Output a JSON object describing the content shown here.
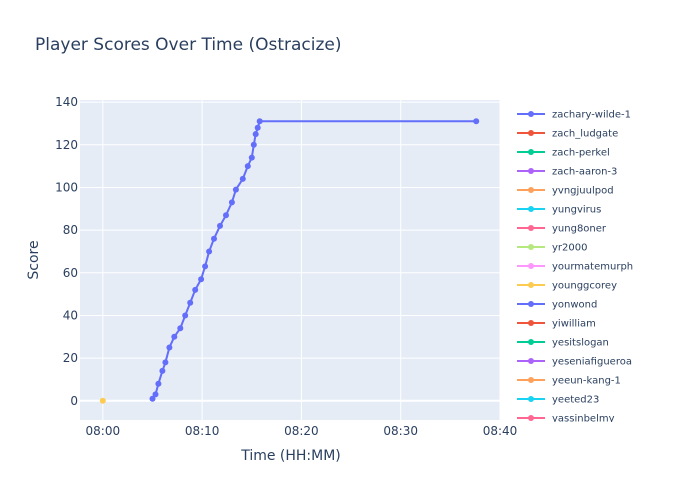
{
  "chart_data": {
    "type": "line",
    "title": "Player Scores Over Time (Ostracize)",
    "xlabel": "Time (HH:MM)",
    "ylabel": "Score",
    "x_ticks": [
      "08:00",
      "08:10",
      "08:20",
      "08:30",
      "08:40"
    ],
    "y_ticks": [
      0,
      20,
      40,
      60,
      80,
      100,
      120,
      140
    ],
    "xlim": [
      "07:57.7",
      "08:40"
    ],
    "ylim": [
      -9,
      141
    ],
    "grid": true,
    "legend_position": "right",
    "series": [
      {
        "name": "zachary-wilde-1",
        "color": "#636efa",
        "points": [
          {
            "x": "08:05.0",
            "y": 1
          },
          {
            "x": "08:05.3",
            "y": 3
          },
          {
            "x": "08:05.6",
            "y": 8
          },
          {
            "x": "08:06.0",
            "y": 14
          },
          {
            "x": "08:06.3",
            "y": 18
          },
          {
            "x": "08:06.7",
            "y": 25
          },
          {
            "x": "08:07.2",
            "y": 30
          },
          {
            "x": "08:07.8",
            "y": 34
          },
          {
            "x": "08:08.3",
            "y": 40
          },
          {
            "x": "08:08.8",
            "y": 46
          },
          {
            "x": "08:09.3",
            "y": 52
          },
          {
            "x": "08:09.9",
            "y": 57
          },
          {
            "x": "08:10.3",
            "y": 63
          },
          {
            "x": "08:10.7",
            "y": 70
          },
          {
            "x": "08:11.2",
            "y": 76
          },
          {
            "x": "08:11.8",
            "y": 82
          },
          {
            "x": "08:12.4",
            "y": 87
          },
          {
            "x": "08:13.0",
            "y": 93
          },
          {
            "x": "08:13.4",
            "y": 99
          },
          {
            "x": "08:14.1",
            "y": 104
          },
          {
            "x": "08:14.6",
            "y": 110
          },
          {
            "x": "08:15.0",
            "y": 114
          },
          {
            "x": "08:15.2",
            "y": 120
          },
          {
            "x": "08:15.4",
            "y": 125
          },
          {
            "x": "08:15.6",
            "y": 128
          },
          {
            "x": "08:15.8",
            "y": 131
          },
          {
            "x": "08:37.6",
            "y": 131
          }
        ]
      },
      {
        "name": "zach_ludgate",
        "color": "#ef553b",
        "points": []
      },
      {
        "name": "zach-perkel",
        "color": "#00cc96",
        "points": []
      },
      {
        "name": "zach-aaron-3",
        "color": "#ab63fa",
        "points": []
      },
      {
        "name": "yvngjuulpod",
        "color": "#ffa15a",
        "points": []
      },
      {
        "name": "yungvirus",
        "color": "#19d3f3",
        "points": []
      },
      {
        "name": "yung8oner",
        "color": "#ff6692",
        "points": []
      },
      {
        "name": "yr2000",
        "color": "#b6e880",
        "points": []
      },
      {
        "name": "yourmatemurph",
        "color": "#ff97ff",
        "points": []
      },
      {
        "name": "younggcorey",
        "color": "#fecb52",
        "points": [
          {
            "x": "08:00.0",
            "y": 0
          }
        ]
      },
      {
        "name": "yonwond",
        "color": "#636efa",
        "points": []
      },
      {
        "name": "yiwilliam",
        "color": "#ef553b",
        "points": []
      },
      {
        "name": "yesitslogan",
        "color": "#00cc96",
        "points": []
      },
      {
        "name": "yeseniafigueroa",
        "color": "#ab63fa",
        "points": []
      },
      {
        "name": "yeeun-kang-1",
        "color": "#ffa15a",
        "points": []
      },
      {
        "name": "yeeted23",
        "color": "#19d3f3",
        "points": []
      },
      {
        "name": "yassinbelmy",
        "color": "#ff6692",
        "points": []
      }
    ]
  }
}
